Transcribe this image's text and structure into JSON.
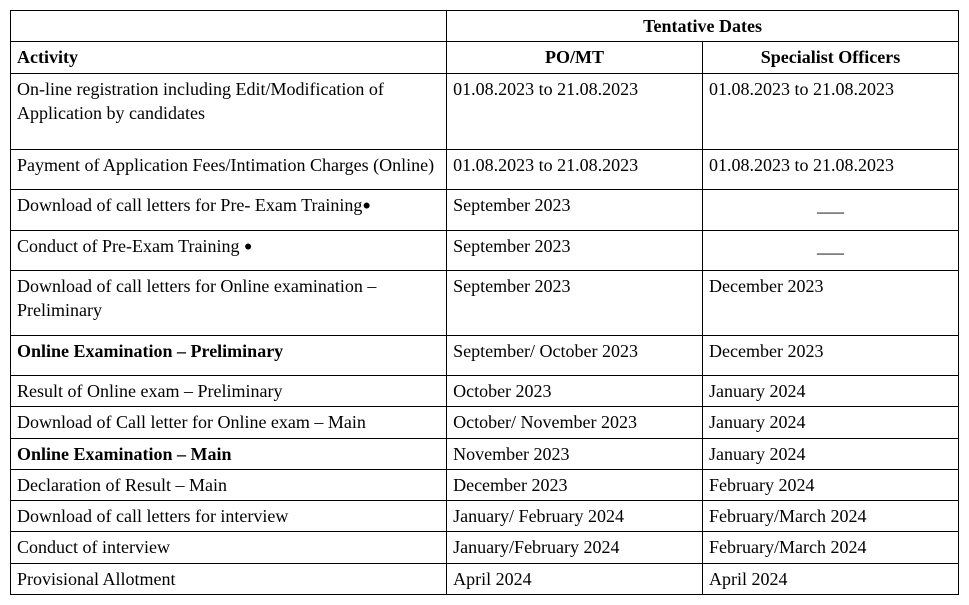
{
  "table": {
    "header": {
      "tentative": "Tentative Dates",
      "activity": "Activity",
      "pomt": "PO/MT",
      "so": "Specialist Officers"
    },
    "rows": [
      {
        "activity": "On-line registration including Edit/Modification of Application by candidates",
        "pomt": "01.08.2023 to 21.08.2023",
        "so": "01.08.2023 to 21.08.2023",
        "bold": false,
        "bullet": false,
        "so_dash": false,
        "tall": true
      },
      {
        "activity": "Payment of Application Fees/Intimation Charges (Online)",
        "pomt": "01.08.2023 to 21.08.2023",
        "so": "01.08.2023 to 21.08.2023",
        "bold": false,
        "bullet": false,
        "so_dash": false,
        "tall": false,
        "med": true
      },
      {
        "activity": "Download of call letters for Pre- Exam Training",
        "pomt": "September 2023",
        "so": "___",
        "bold": false,
        "bullet": true,
        "so_dash": true,
        "tall": false,
        "med": true
      },
      {
        "activity": "Conduct of Pre-Exam Training ",
        "pomt": "September 2023",
        "so": "___",
        "bold": false,
        "bullet": true,
        "so_dash": true,
        "tall": false,
        "med": true
      },
      {
        "activity": "Download of call letters for Online examination – Preliminary",
        "pomt": "September 2023",
        "so": "December 2023",
        "bold": false,
        "bullet": false,
        "so_dash": false,
        "tall": false,
        "med": true
      },
      {
        "activity": "Online Examination – Preliminary",
        "pomt": "September/ October 2023",
        "so": "December 2023",
        "bold": true,
        "bullet": false,
        "so_dash": false,
        "tall": false,
        "med": true
      },
      {
        "activity": "Result of Online exam – Preliminary",
        "pomt": "October 2023",
        "so": "January 2024",
        "bold": false,
        "bullet": false,
        "so_dash": false,
        "tall": false
      },
      {
        "activity": "Download of Call letter for Online exam – Main",
        "pomt": "October/ November 2023",
        "so": "January 2024",
        "bold": false,
        "bullet": false,
        "so_dash": false,
        "tall": false
      },
      {
        "activity": "Online Examination – Main",
        "pomt": "November 2023",
        "so": "January 2024",
        "bold": true,
        "bullet": false,
        "so_dash": false,
        "tall": false
      },
      {
        "activity": "Declaration of Result – Main",
        "pomt": "December 2023",
        "so": "February 2024",
        "bold": false,
        "bullet": false,
        "so_dash": false,
        "tall": false
      },
      {
        "activity": "Download of call letters for interview",
        "pomt": "January/ February 2024",
        "so": "February/March 2024",
        "bold": false,
        "bullet": false,
        "so_dash": false,
        "tall": false
      },
      {
        "activity": "Conduct of interview",
        "pomt": "January/February 2024",
        "so": "February/March 2024",
        "bold": false,
        "bullet": false,
        "so_dash": false,
        "tall": false
      },
      {
        "activity": "Provisional Allotment",
        "pomt": "April 2024",
        "so": "April 2024",
        "bold": false,
        "bullet": false,
        "so_dash": false,
        "tall": false
      }
    ]
  }
}
